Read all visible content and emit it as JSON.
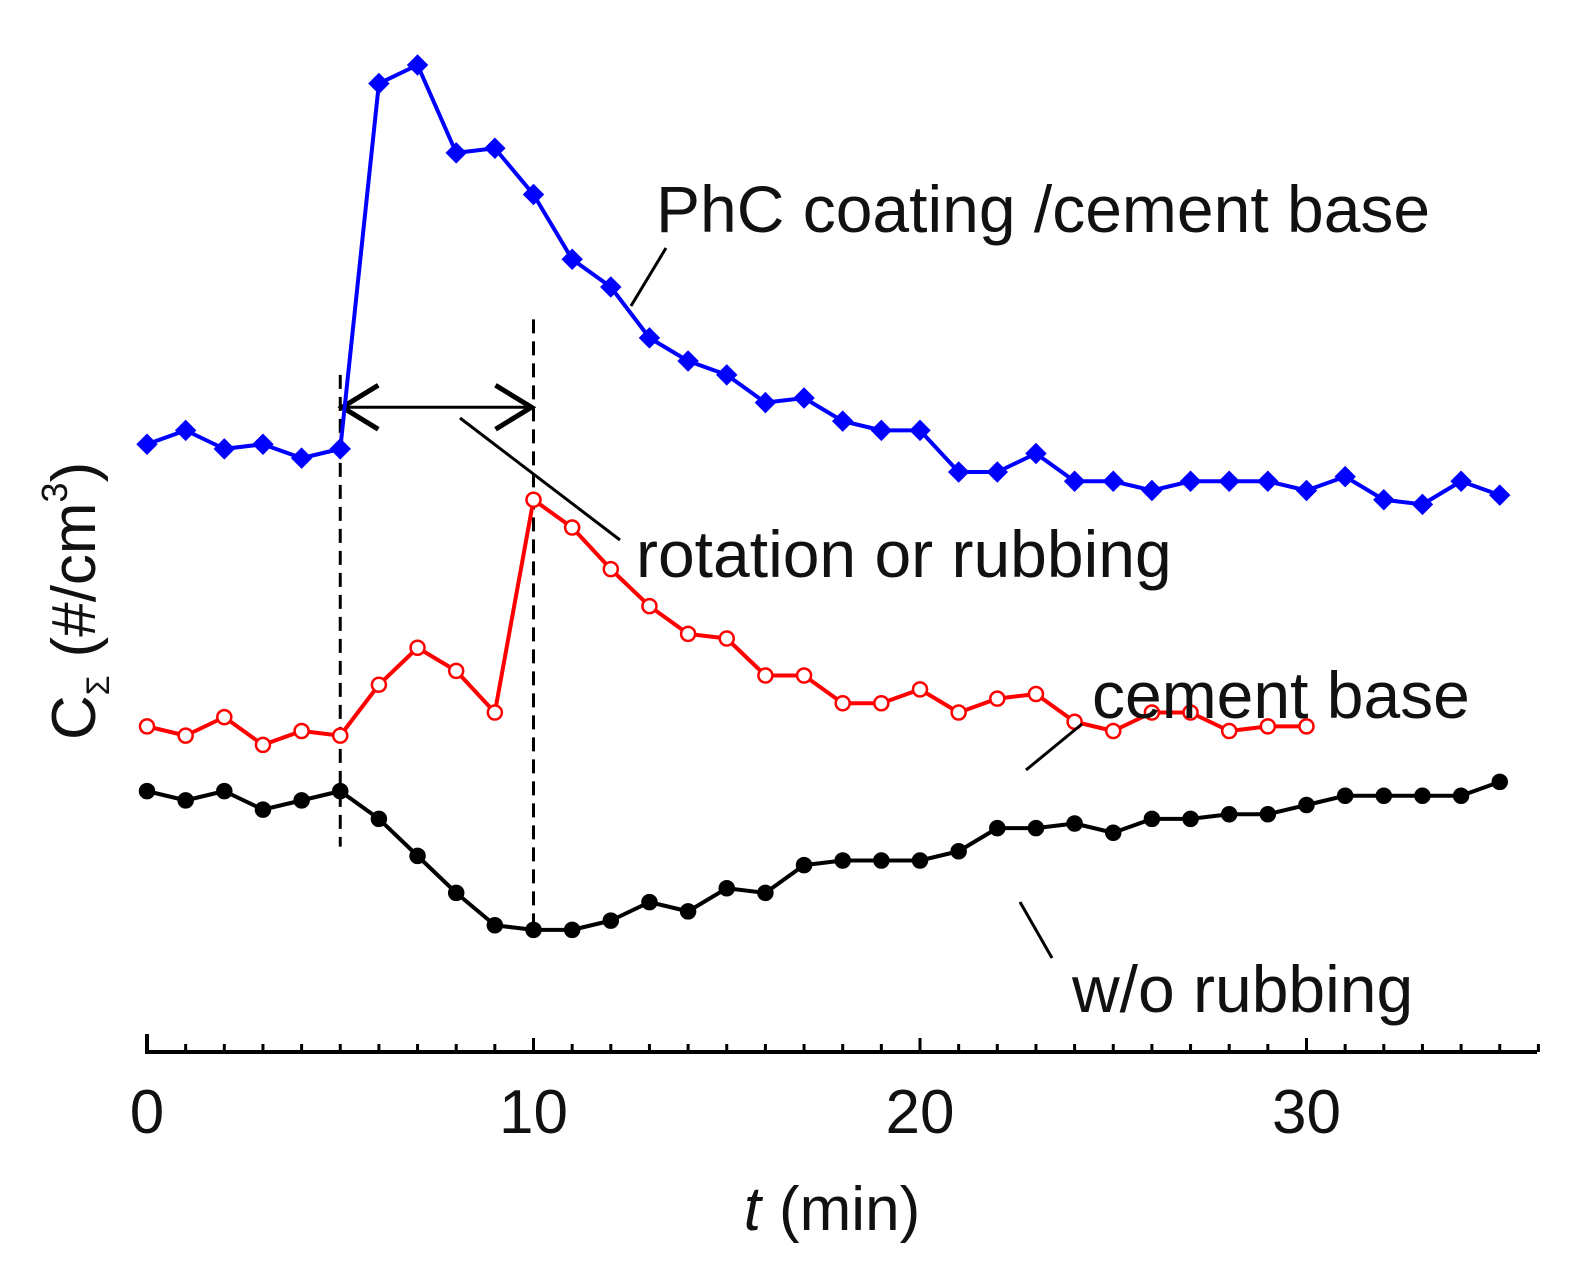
{
  "chart_data": {
    "type": "line",
    "title": "",
    "xlabel": {
      "var": "t",
      "unit": "(min)"
    },
    "ylabel": {
      "var": "C",
      "subscript": "Σ",
      "unit_prefix": "(#/cm",
      "unit_sup": "3",
      "unit_suffix": ")"
    },
    "xlim": [
      0,
      36
    ],
    "ylim": [
      0,
      100
    ],
    "xticks": [
      "0",
      "10",
      "20",
      "30"
    ],
    "yticks_shown": false,
    "grid": false,
    "series": [
      {
        "name": "PhC coating /cement base",
        "color": "#0000ff",
        "marker": "diamond",
        "filled": true,
        "x": [
          0,
          1,
          2,
          3,
          4,
          5,
          6,
          7,
          8,
          9,
          10,
          11,
          12,
          13,
          14,
          15,
          16,
          17,
          18,
          19,
          20,
          21,
          22,
          23,
          24,
          25,
          26,
          27,
          28,
          29,
          30,
          31,
          32,
          33,
          34,
          35
        ],
        "y": [
          59,
          60.5,
          58.5,
          59,
          57.5,
          58.5,
          98,
          100,
          90.5,
          91,
          86,
          79,
          76,
          70.5,
          68,
          66.5,
          63.5,
          64,
          61.5,
          60.5,
          60.5,
          56,
          56,
          58,
          55,
          55,
          54,
          55,
          55,
          55,
          54,
          55.5,
          53,
          52.5,
          55,
          53.5
        ]
      },
      {
        "name": "cement base",
        "color": "#ff0000",
        "marker": "circle",
        "filled": false,
        "x": [
          0,
          1,
          2,
          3,
          4,
          5,
          6,
          7,
          8,
          9,
          10,
          11,
          12,
          13,
          14,
          15,
          16,
          17,
          18,
          19,
          20,
          21,
          22,
          23,
          24,
          25,
          26,
          27,
          28,
          29,
          30
        ],
        "y": [
          28.5,
          27.5,
          29.5,
          26.5,
          28,
          27.5,
          33,
          37,
          34.5,
          30,
          53,
          50,
          45.5,
          41.5,
          38.5,
          38,
          34,
          34,
          31,
          31,
          32.5,
          30,
          31.5,
          32,
          29,
          28,
          30,
          30,
          28,
          28.5,
          28.5
        ]
      },
      {
        "name": "w/o rubbing",
        "color": "#000000",
        "marker": "circle",
        "filled": true,
        "x": [
          0,
          1,
          2,
          3,
          4,
          5,
          6,
          7,
          8,
          9,
          10,
          11,
          12,
          13,
          14,
          15,
          16,
          17,
          18,
          19,
          20,
          21,
          22,
          23,
          24,
          25,
          26,
          27,
          28,
          29,
          30,
          31,
          32,
          33,
          34,
          35
        ],
        "y": [
          21.5,
          20.5,
          21.5,
          19.5,
          20.5,
          21.5,
          18.5,
          14.5,
          10.5,
          7,
          6.5,
          6.5,
          7.5,
          9.5,
          8.5,
          11,
          10.5,
          13.5,
          14,
          14,
          14,
          15,
          17.5,
          17.5,
          18,
          17,
          18.5,
          18.5,
          19,
          19,
          20,
          21,
          21,
          21,
          21,
          22.5
        ]
      }
    ],
    "reference_lines": [
      {
        "axis": "x",
        "value": 5,
        "style": "dashed",
        "y_from": 15.5,
        "y_to": 66.5
      },
      {
        "axis": "x",
        "value": 10,
        "style": "dashed",
        "y_from": 6.5,
        "y_to": 72.5
      }
    ],
    "annotations": [
      {
        "text": "PhC coating /cement base",
        "series": 0
      },
      {
        "text": "rotation or rubbing",
        "span_from": 5,
        "span_to": 10,
        "arrow_y": 63
      },
      {
        "text": "cement base",
        "series": 1
      },
      {
        "text": "w/o rubbing",
        "series": 2
      }
    ]
  }
}
